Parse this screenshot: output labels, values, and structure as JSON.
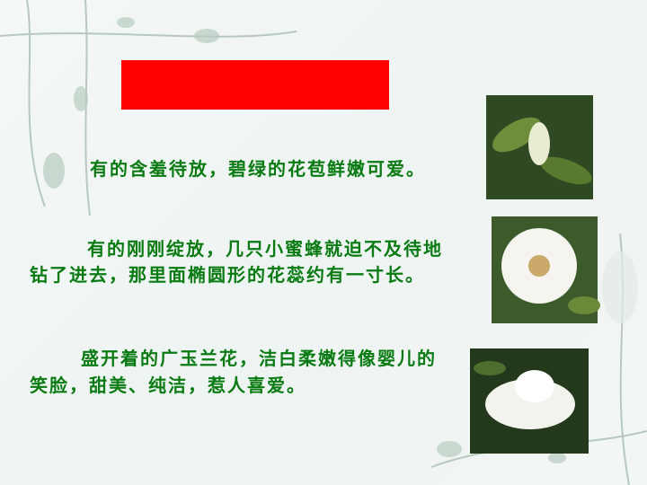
{
  "paragraphs": [
    {
      "lines": [
        "有的含羞待放，碧绿的花苞鲜嫩可爱。"
      ]
    },
    {
      "lines": [
        "有的刚刚绽放，几只小蜜蜂就迫不及待地",
        "钻了进去，那里面椭圆形的花蕊约有一寸长。"
      ]
    },
    {
      "lines": [
        "盛开着的广玉兰花，洁白柔嫩得像婴儿的",
        "笑脸，甜美、纯洁，惹人喜爱。"
      ]
    }
  ]
}
